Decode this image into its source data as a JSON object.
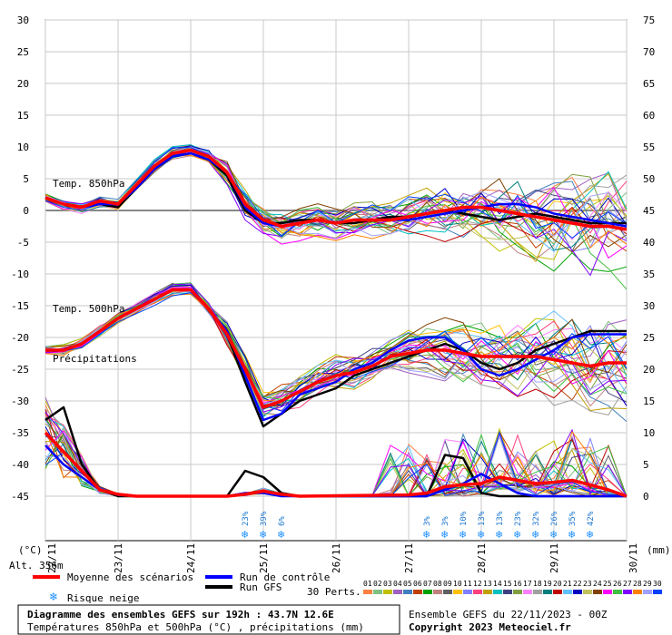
{
  "chart_data": {
    "type": "line",
    "x_dates": [
      "23/11",
      "24/11",
      "25/11",
      "26/11",
      "27/11",
      "28/11",
      "29/11",
      "30/11"
    ],
    "x_hours": [
      0,
      192
    ],
    "left_axis": {
      "unit": "(°C)",
      "ticks": [
        30,
        25,
        20,
        15,
        10,
        5,
        0,
        -5,
        -10,
        -15,
        -20,
        -25,
        -30,
        -35,
        -40,
        -45
      ],
      "range": [
        -45,
        30
      ]
    },
    "right_axis": {
      "unit": "(mm)",
      "ticks": [
        75,
        70,
        65,
        60,
        55,
        50,
        45,
        40,
        35,
        30,
        25,
        20,
        15,
        10,
        5,
        0
      ],
      "range": [
        0,
        75
      ]
    },
    "labels": {
      "t850": "Temp. 850hPa",
      "t500": "Temp. 500hPa",
      "precip": "Précipitations",
      "first_date": "22/11",
      "last_date": "30/11",
      "alt": "Alt. 356m"
    },
    "snow_risk": [
      {
        "h": 66,
        "pct": "23%"
      },
      {
        "h": 72,
        "pct": "39%"
      },
      {
        "h": 78,
        "pct": "6%"
      },
      {
        "h": 126,
        "pct": "3%"
      },
      {
        "h": 132,
        "pct": "3%"
      },
      {
        "h": 138,
        "pct": "10%"
      },
      {
        "h": 144,
        "pct": "13%"
      },
      {
        "h": 150,
        "pct": "13%"
      },
      {
        "h": 156,
        "pct": "23%"
      },
      {
        "h": 162,
        "pct": "32%"
      },
      {
        "h": 168,
        "pct": "26%"
      },
      {
        "h": 174,
        "pct": "35%"
      },
      {
        "h": 180,
        "pct": "42%"
      }
    ],
    "series": [
      {
        "name": "Moyenne des scénarios",
        "color": "#ff0000",
        "t850": [
          [
            0,
            2
          ],
          [
            6,
            1
          ],
          [
            12,
            0.5
          ],
          [
            18,
            1.5
          ],
          [
            24,
            1
          ],
          [
            30,
            4
          ],
          [
            36,
            7
          ],
          [
            42,
            9
          ],
          [
            48,
            9.5
          ],
          [
            54,
            8.5
          ],
          [
            60,
            6
          ],
          [
            66,
            1
          ],
          [
            72,
            -1.5
          ],
          [
            78,
            -2.5
          ],
          [
            84,
            -2
          ],
          [
            90,
            -1.5
          ],
          [
            96,
            -2
          ],
          [
            102,
            -1.5
          ],
          [
            108,
            -1.5
          ],
          [
            114,
            -1.5
          ],
          [
            120,
            -1
          ],
          [
            126,
            -0.5
          ],
          [
            132,
            0
          ],
          [
            138,
            0.5
          ],
          [
            144,
            0.5
          ],
          [
            150,
            0
          ],
          [
            156,
            -0.5
          ],
          [
            162,
            -1
          ],
          [
            168,
            -1.5
          ],
          [
            174,
            -2
          ],
          [
            180,
            -2.5
          ],
          [
            186,
            -2.5
          ],
          [
            192,
            -3
          ]
        ],
        "t500": [
          [
            0,
            -22
          ],
          [
            6,
            -22
          ],
          [
            12,
            -21
          ],
          [
            18,
            -19
          ],
          [
            24,
            -17
          ],
          [
            30,
            -15.5
          ],
          [
            36,
            -14
          ],
          [
            42,
            -12.5
          ],
          [
            48,
            -12.5
          ],
          [
            54,
            -15.5
          ],
          [
            60,
            -19.5
          ],
          [
            66,
            -25
          ],
          [
            72,
            -31
          ],
          [
            78,
            -30
          ],
          [
            84,
            -28.5
          ],
          [
            90,
            -27
          ],
          [
            96,
            -26
          ],
          [
            102,
            -25.5
          ],
          [
            108,
            -24.5
          ],
          [
            114,
            -23
          ],
          [
            120,
            -22.5
          ],
          [
            126,
            -22
          ],
          [
            132,
            -22
          ],
          [
            138,
            -22.5
          ],
          [
            144,
            -23
          ],
          [
            150,
            -23
          ],
          [
            156,
            -23
          ],
          [
            162,
            -23
          ],
          [
            168,
            -23.5
          ],
          [
            174,
            -24
          ],
          [
            180,
            -24.5
          ],
          [
            186,
            -24
          ],
          [
            192,
            -24
          ]
        ],
        "precip": [
          [
            0,
            10
          ],
          [
            6,
            7
          ],
          [
            12,
            4
          ],
          [
            18,
            1
          ],
          [
            24,
            0.3
          ],
          [
            30,
            0
          ],
          [
            42,
            0
          ],
          [
            60,
            0
          ],
          [
            66,
            0.3
          ],
          [
            72,
            0.8
          ],
          [
            78,
            0.3
          ],
          [
            84,
            0
          ],
          [
            120,
            0.2
          ],
          [
            126,
            0.5
          ],
          [
            132,
            1.5
          ],
          [
            138,
            1.8
          ],
          [
            144,
            2
          ],
          [
            150,
            3
          ],
          [
            156,
            2.5
          ],
          [
            162,
            2
          ],
          [
            168,
            2.2
          ],
          [
            174,
            2.5
          ],
          [
            180,
            1.8
          ],
          [
            186,
            1
          ],
          [
            192,
            0
          ]
        ]
      },
      {
        "name": "Run de contrôle",
        "color": "#0000ff",
        "t850": [
          [
            0,
            2
          ],
          [
            6,
            1
          ],
          [
            12,
            0.5
          ],
          [
            18,
            1
          ],
          [
            24,
            1
          ],
          [
            30,
            3.5
          ],
          [
            36,
            6.5
          ],
          [
            42,
            8.5
          ],
          [
            48,
            9
          ],
          [
            54,
            8
          ],
          [
            60,
            6
          ],
          [
            66,
            0.5
          ],
          [
            72,
            -2
          ],
          [
            78,
            -2.5
          ],
          [
            84,
            -2
          ],
          [
            90,
            -1.5
          ],
          [
            96,
            -2
          ],
          [
            102,
            -1.5
          ],
          [
            108,
            -1.5
          ],
          [
            114,
            -1.5
          ],
          [
            120,
            -1.5
          ],
          [
            126,
            -1
          ],
          [
            132,
            -0.5
          ],
          [
            138,
            0
          ],
          [
            144,
            0.5
          ],
          [
            150,
            1
          ],
          [
            156,
            1
          ],
          [
            162,
            0.5
          ],
          [
            168,
            -0.5
          ],
          [
            174,
            -1
          ],
          [
            180,
            -1.5
          ],
          [
            186,
            -2
          ],
          [
            192,
            -2.5
          ]
        ],
        "t500": [
          [
            0,
            -22
          ],
          [
            6,
            -22
          ],
          [
            12,
            -21
          ],
          [
            18,
            -19
          ],
          [
            24,
            -17
          ],
          [
            30,
            -15.5
          ],
          [
            36,
            -14
          ],
          [
            42,
            -12.5
          ],
          [
            48,
            -12.5
          ],
          [
            54,
            -15.5
          ],
          [
            60,
            -19
          ],
          [
            66,
            -26
          ],
          [
            72,
            -33
          ],
          [
            78,
            -32
          ],
          [
            84,
            -29
          ],
          [
            90,
            -28
          ],
          [
            96,
            -27
          ],
          [
            102,
            -25
          ],
          [
            108,
            -24
          ],
          [
            114,
            -22
          ],
          [
            120,
            -20.5
          ],
          [
            126,
            -20
          ],
          [
            132,
            -20
          ],
          [
            138,
            -22
          ],
          [
            144,
            -25
          ],
          [
            150,
            -26
          ],
          [
            156,
            -25
          ],
          [
            162,
            -23.5
          ],
          [
            168,
            -22
          ],
          [
            174,
            -20
          ],
          [
            180,
            -19.5
          ],
          [
            186,
            -19.5
          ],
          [
            192,
            -19.5
          ]
        ],
        "precip": [
          [
            0,
            8
          ],
          [
            6,
            5
          ],
          [
            12,
            3
          ],
          [
            18,
            1
          ],
          [
            24,
            0.2
          ],
          [
            30,
            0
          ],
          [
            60,
            0
          ],
          [
            66,
            0.5
          ],
          [
            72,
            0.5
          ],
          [
            78,
            0
          ],
          [
            120,
            0
          ],
          [
            126,
            0
          ],
          [
            132,
            1
          ],
          [
            138,
            2
          ],
          [
            144,
            3.5
          ],
          [
            150,
            2
          ],
          [
            156,
            0.5
          ],
          [
            162,
            0
          ],
          [
            192,
            0
          ]
        ]
      },
      {
        "name": "Run GFS",
        "color": "#000000",
        "t850": [
          [
            0,
            2
          ],
          [
            6,
            1
          ],
          [
            12,
            0.5
          ],
          [
            18,
            1
          ],
          [
            24,
            0.5
          ],
          [
            30,
            3.5
          ],
          [
            36,
            6.5
          ],
          [
            42,
            8.5
          ],
          [
            48,
            9
          ],
          [
            54,
            8
          ],
          [
            60,
            5.5
          ],
          [
            66,
            0
          ],
          [
            72,
            -2
          ],
          [
            78,
            -2
          ],
          [
            84,
            -1.5
          ],
          [
            90,
            -1.5
          ],
          [
            96,
            -2
          ],
          [
            102,
            -2
          ],
          [
            108,
            -1.5
          ],
          [
            114,
            -1
          ],
          [
            120,
            -1
          ],
          [
            126,
            -0.5
          ],
          [
            132,
            0
          ],
          [
            138,
            -0.5
          ],
          [
            144,
            -1
          ],
          [
            150,
            -1.5
          ],
          [
            156,
            -1
          ],
          [
            162,
            -0.5
          ],
          [
            168,
            -1
          ],
          [
            174,
            -1.5
          ],
          [
            180,
            -2
          ],
          [
            186,
            -2
          ],
          [
            192,
            -2
          ]
        ],
        "t500": [
          [
            0,
            -22
          ],
          [
            6,
            -22
          ],
          [
            12,
            -21
          ],
          [
            18,
            -19
          ],
          [
            24,
            -17
          ],
          [
            30,
            -15.5
          ],
          [
            36,
            -14
          ],
          [
            42,
            -12.5
          ],
          [
            48,
            -12.5
          ],
          [
            54,
            -15.5
          ],
          [
            60,
            -19.5
          ],
          [
            66,
            -27
          ],
          [
            72,
            -34
          ],
          [
            78,
            -32
          ],
          [
            84,
            -30
          ],
          [
            90,
            -29
          ],
          [
            96,
            -28
          ],
          [
            102,
            -26
          ],
          [
            108,
            -25
          ],
          [
            114,
            -24
          ],
          [
            120,
            -23
          ],
          [
            126,
            -22
          ],
          [
            132,
            -21
          ],
          [
            138,
            -22
          ],
          [
            144,
            -24
          ],
          [
            150,
            -25
          ],
          [
            156,
            -24
          ],
          [
            162,
            -22
          ],
          [
            168,
            -21
          ],
          [
            174,
            -20
          ],
          [
            180,
            -19
          ],
          [
            186,
            -19
          ],
          [
            192,
            -19
          ]
        ],
        "precip": [
          [
            0,
            12
          ],
          [
            6,
            14
          ],
          [
            12,
            5
          ],
          [
            18,
            1
          ],
          [
            24,
            0
          ],
          [
            60,
            0
          ],
          [
            66,
            4
          ],
          [
            72,
            3
          ],
          [
            78,
            0.5
          ],
          [
            84,
            0
          ],
          [
            126,
            0
          ],
          [
            132,
            6.5
          ],
          [
            138,
            6
          ],
          [
            144,
            0.5
          ],
          [
            150,
            0
          ],
          [
            192,
            0
          ]
        ]
      }
    ]
  },
  "legend": {
    "mean": "Moyenne des scénarios",
    "control": "Run de contrôle",
    "gfs": "Run GFS",
    "snow": "Risque neige",
    "perts_label": "30 Perts.",
    "perts": [
      "01",
      "02",
      "03",
      "04",
      "05",
      "06",
      "07",
      "08",
      "09",
      "10",
      "11",
      "12",
      "13",
      "14",
      "15",
      "16",
      "17",
      "18",
      "19",
      "20",
      "21",
      "22",
      "23",
      "24",
      "25",
      "26",
      "27",
      "28",
      "29",
      "30"
    ],
    "pert_colors": [
      "#ff8040",
      "#80c080",
      "#c0c000",
      "#a060c0",
      "#4080c0",
      "#c04000",
      "#00a000",
      "#c08080",
      "#606060",
      "#ffc000",
      "#8080ff",
      "#ff4080",
      "#c0a000",
      "#00c0c0",
      "#404080",
      "#80a040",
      "#ff80ff",
      "#a0a0a0",
      "#008080",
      "#c00000",
      "#60c0ff",
      "#0000c0",
      "#c0c060",
      "#804000",
      "#ff00ff",
      "#40c040",
      "#8000ff",
      "#ff8000",
      "#a0a0ff",
      "#0040ff"
    ]
  },
  "footer": {
    "title": "Diagramme des ensembles GEFS sur 192h : 43.7N 12.6E",
    "subtitle": "Températures 850hPa et 500hPa (°C) , précipitations (mm)",
    "run": "Ensemble GEFS du 22/11/2023 - 00Z",
    "copyright": "Copyright 2023 Meteociel.fr"
  }
}
